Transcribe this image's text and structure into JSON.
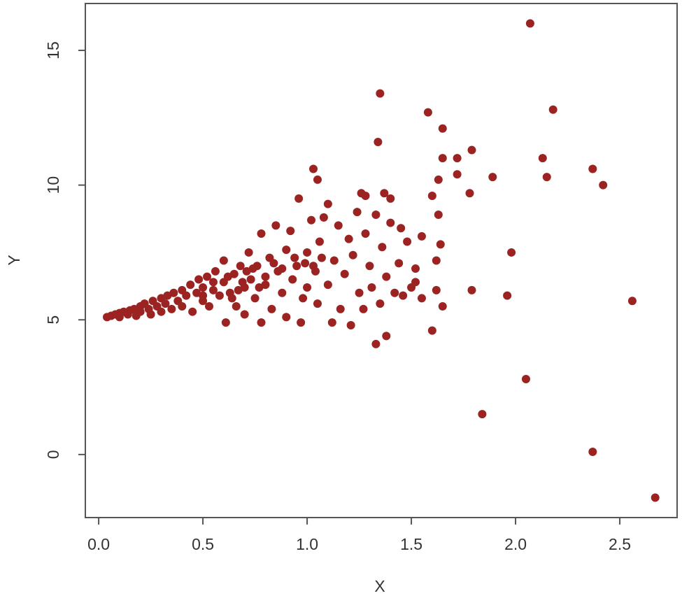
{
  "chart_data": {
    "type": "scatter",
    "x_label": "X",
    "y_label": "Y",
    "color": "#9b2423",
    "xlim": [
      -0.064,
      2.775
    ],
    "ylim": [
      -2.34,
      16.74
    ],
    "xticks": [
      {
        "value": 0,
        "label": "0.0"
      },
      0.5,
      {
        "value": 1,
        "label": "1.0"
      },
      1.5,
      {
        "value": 2,
        "label": "2.0"
      },
      2.5
    ],
    "yticks": [
      0,
      5,
      10,
      15
    ],
    "x": [
      2.07,
      1.35,
      1.58,
      2.18,
      1.65,
      1.34,
      1.79,
      2.13,
      1.72,
      1.65,
      1.03,
      2.37,
      1.72,
      2.15,
      1.89,
      1.63,
      2.42,
      1.05,
      1.78,
      1.6,
      1.26,
      1.37,
      1.28,
      1.4,
      1.98,
      1.79,
      1.96,
      2.56,
      1.65,
      1.6,
      1.38,
      1.33,
      2.05,
      1.84,
      2.37,
      2.67,
      1.62,
      1.64,
      1.55,
      1.63,
      1.45,
      1.52,
      1.62,
      1.55,
      0.04,
      0.06,
      0.08,
      0.1,
      0.1,
      0.12,
      0.14,
      0.15,
      0.17,
      0.18,
      0.2,
      0.2,
      0.22,
      0.24,
      0.25,
      0.26,
      0.28,
      0.3,
      0.3,
      0.32,
      0.33,
      0.35,
      0.36,
      0.38,
      0.4,
      0.4,
      0.42,
      0.44,
      0.45,
      0.47,
      0.48,
      0.5,
      0.5,
      0.52,
      0.53,
      0.55,
      0.56,
      0.58,
      0.6,
      0.6,
      0.61,
      0.63,
      0.65,
      0.66,
      0.68,
      0.7,
      0.7,
      0.72,
      0.73,
      0.75,
      0.76,
      0.78,
      0.78,
      0.8,
      0.82,
      0.83,
      0.85,
      0.86,
      0.88,
      0.9,
      0.9,
      0.92,
      0.93,
      0.95,
      0.96,
      0.97,
      0.98,
      1.0,
      1.0,
      1.02,
      1.04,
      1.05,
      1.06,
      1.08,
      1.1,
      1.1,
      1.12,
      1.13,
      1.15,
      1.16,
      1.18,
      1.2,
      1.21,
      1.22,
      1.24,
      1.25,
      1.27,
      1.28,
      1.3,
      1.31,
      1.33,
      1.35,
      1.36,
      1.38,
      1.4,
      1.42,
      1.44,
      1.46,
      1.48,
      1.5,
      1.52,
      0.5,
      0.55,
      0.62,
      0.67,
      0.74,
      0.8,
      0.84,
      0.88,
      0.94,
      0.99,
      1.03,
      1.07,
      0.64,
      0.69,
      0.71,
      0.77
    ],
    "values": [
      16.0,
      13.4,
      12.7,
      12.8,
      12.1,
      11.6,
      11.3,
      11.0,
      11.0,
      11.0,
      10.6,
      10.6,
      10.4,
      10.3,
      10.3,
      10.2,
      10.0,
      10.2,
      9.7,
      9.6,
      9.7,
      9.7,
      9.6,
      9.5,
      7.5,
      6.1,
      5.9,
      5.7,
      5.5,
      4.6,
      4.4,
      4.1,
      2.8,
      1.5,
      0.1,
      -1.6,
      7.2,
      7.8,
      8.1,
      8.9,
      8.4,
      6.4,
      6.1,
      5.8,
      5.1,
      5.15,
      5.2,
      5.1,
      5.25,
      5.3,
      5.2,
      5.35,
      5.4,
      5.15,
      5.5,
      5.3,
      5.6,
      5.4,
      5.2,
      5.7,
      5.5,
      5.8,
      5.3,
      5.6,
      5.9,
      5.4,
      6.0,
      5.7,
      6.1,
      5.5,
      5.9,
      6.3,
      5.3,
      6.0,
      6.5,
      5.7,
      6.2,
      6.6,
      5.5,
      6.1,
      6.8,
      5.9,
      6.4,
      7.2,
      4.9,
      6.0,
      6.7,
      5.5,
      7.0,
      6.2,
      5.2,
      7.5,
      6.5,
      5.8,
      7.0,
      8.2,
      4.9,
      6.3,
      7.3,
      5.4,
      8.5,
      6.8,
      6.0,
      7.6,
      5.1,
      8.3,
      6.5,
      7.0,
      9.5,
      4.9,
      5.8,
      7.5,
      6.2,
      8.7,
      6.8,
      5.6,
      7.9,
      8.8,
      6.3,
      9.3,
      4.9,
      7.2,
      8.5,
      5.4,
      6.7,
      8.0,
      4.8,
      7.4,
      9.0,
      6.0,
      5.4,
      8.2,
      7.0,
      6.2,
      8.9,
      5.6,
      7.7,
      6.6,
      8.6,
      6.0,
      7.1,
      5.9,
      7.9,
      6.2,
      6.9,
      5.9,
      6.4,
      6.6,
      6.1,
      6.9,
      6.6,
      7.1,
      6.9,
      7.3,
      7.1,
      7.0,
      7.3,
      5.8,
      6.4,
      6.8,
      6.2
    ]
  }
}
